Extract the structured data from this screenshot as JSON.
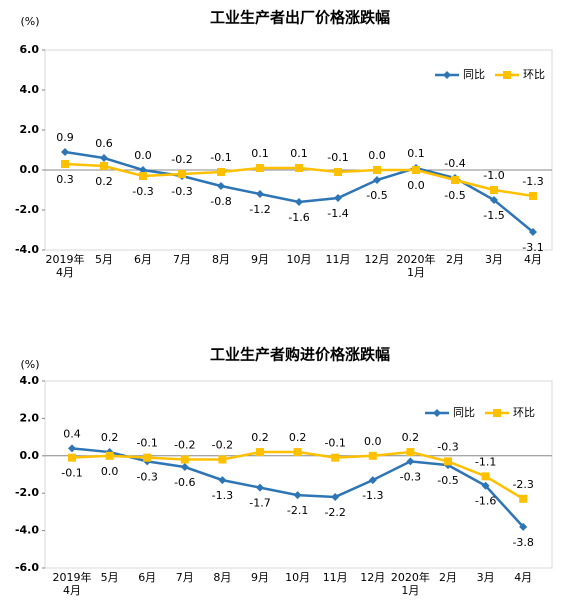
{
  "chart_data": [
    {
      "type": "line",
      "title": "工业生产者出厂价格涨跌幅",
      "y_label": "(%)",
      "categories": [
        "2019年\n4月",
        "5月",
        "6月",
        "7月",
        "8月",
        "9月",
        "10月",
        "11月",
        "12月",
        "2020年\n1月",
        "2月",
        "3月",
        "4月"
      ],
      "series": [
        {
          "name": "同比",
          "color": "#2e75b6",
          "marker": "diamond",
          "values": [
            0.9,
            0.6,
            0.0,
            -0.3,
            -0.8,
            -1.2,
            -1.6,
            -1.4,
            -0.5,
            0.1,
            -0.4,
            -1.5,
            -3.1
          ],
          "value_labels": [
            "0.9",
            "0.6",
            "0.0",
            "-0.3",
            "-0.8",
            "-1.2",
            "-1.6",
            "-1.4",
            "-0.5",
            "0.1",
            "-0.4",
            "-1.5",
            "-3.1"
          ]
        },
        {
          "name": "环比",
          "color": "#ffc000",
          "marker": "square",
          "values": [
            0.3,
            0.2,
            -0.3,
            -0.2,
            -0.1,
            0.1,
            0.1,
            -0.1,
            0.0,
            0.0,
            -0.5,
            -1.0,
            -1.3
          ],
          "value_labels": [
            "0.3",
            "0.2",
            "-0.3",
            "-0.2",
            "-0.1",
            "0.1",
            "0.1",
            "-0.1",
            "0.0",
            "0.0",
            "-0.5",
            "-1.0",
            "-1.3"
          ]
        }
      ],
      "ylim": [
        -4,
        6
      ],
      "yticks": [
        {
          "value": 6,
          "label": "6.0"
        },
        {
          "value": 4,
          "label": "4.0"
        },
        {
          "value": 2,
          "label": "2.0"
        },
        {
          "value": 0,
          "label": "0.0"
        },
        {
          "value": -2,
          "label": "-2.0"
        },
        {
          "value": -4,
          "label": "-4.0"
        }
      ],
      "legend": "upper right"
    },
    {
      "type": "line",
      "title": "工业生产者购进价格涨跌幅",
      "y_label": "(%)",
      "categories": [
        "2019年\n4月",
        "5月",
        "6月",
        "7月",
        "8月",
        "9月",
        "10月",
        "11月",
        "12月",
        "2020年\n1月",
        "2月",
        "3月",
        "4月"
      ],
      "series": [
        {
          "name": "同比",
          "color": "#2e75b6",
          "marker": "diamond",
          "values": [
            0.4,
            0.2,
            -0.3,
            -0.6,
            -1.3,
            -1.7,
            -2.1,
            -2.2,
            -1.3,
            -0.3,
            -0.5,
            -1.6,
            -3.8
          ],
          "value_labels": [
            "0.4",
            "0.2",
            "-0.3",
            "-0.6",
            "-1.3",
            "-1.7",
            "-2.1",
            "-2.2",
            "-1.3",
            "-0.3",
            "-0.5",
            "-1.6",
            "-3.8"
          ]
        },
        {
          "name": "环比",
          "color": "#ffc000",
          "marker": "square",
          "values": [
            -0.1,
            0.0,
            -0.1,
            -0.2,
            -0.2,
            0.2,
            0.2,
            -0.1,
            0.0,
            0.2,
            -0.3,
            -1.1,
            -2.3
          ],
          "value_labels": [
            "-0.1",
            "0.0",
            "-0.1",
            "-0.2",
            "-0.2",
            "0.2",
            "0.2",
            "-0.1",
            "0.0",
            "0.2",
            "-0.3",
            "-1.1",
            "-2.3"
          ]
        }
      ],
      "ylim": [
        -6,
        4
      ],
      "yticks": [
        {
          "value": 4,
          "label": "4.0"
        },
        {
          "value": 2,
          "label": "2.0"
        },
        {
          "value": 0,
          "label": "0.0"
        },
        {
          "value": -2,
          "label": "-2.0"
        },
        {
          "value": -4,
          "label": "-4.0"
        },
        {
          "value": -6,
          "label": "-6.0"
        }
      ],
      "legend": "upper right"
    }
  ]
}
